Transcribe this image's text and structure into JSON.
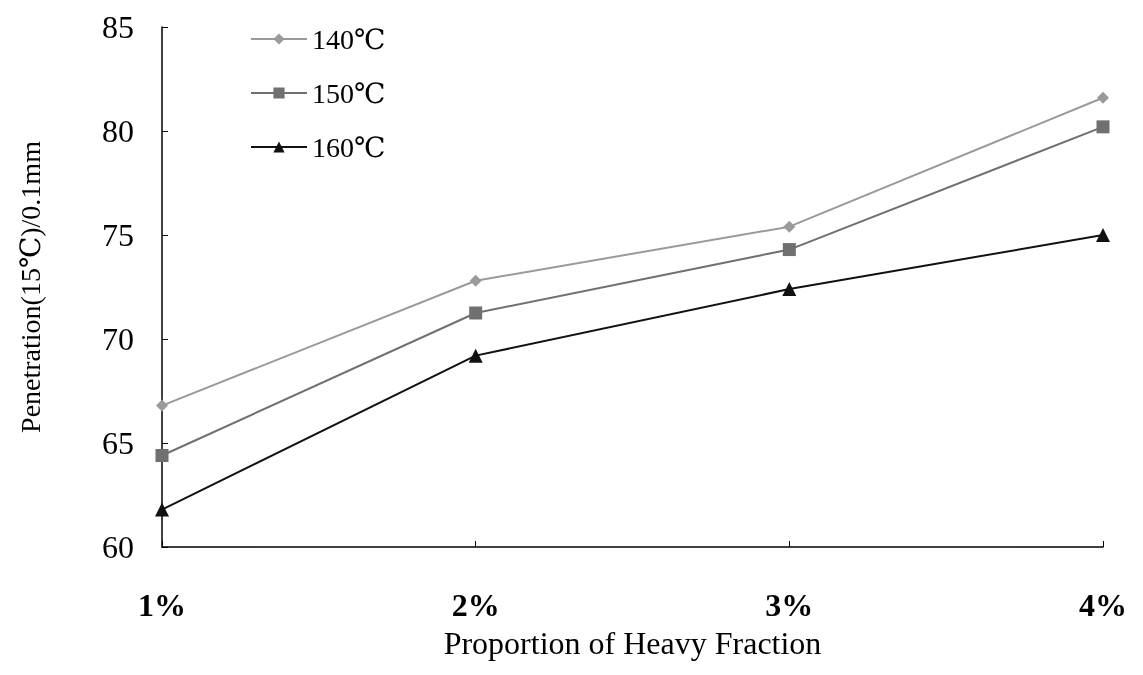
{
  "chart_data": {
    "type": "line",
    "xlabel": "Proportion of Heavy Fraction",
    "ylabel": "Penetration(15℃)/0.1mm",
    "categories": [
      "1%",
      "2%",
      "3%",
      "4%"
    ],
    "series": [
      {
        "name": "140℃",
        "color": "#9a9a9a",
        "marker": "diamond",
        "values": [
          66.8,
          72.8,
          75.4,
          81.6
        ]
      },
      {
        "name": "150℃",
        "color": "#707070",
        "marker": "square",
        "values": [
          64.4,
          71.25,
          74.3,
          80.2
        ]
      },
      {
        "name": "160℃",
        "color": "#111111",
        "marker": "triangle",
        "values": [
          61.8,
          69.2,
          72.4,
          75.0
        ]
      }
    ],
    "ylim": [
      60,
      85
    ],
    "yticks": [
      60,
      65,
      70,
      75,
      80,
      85
    ],
    "grid": false,
    "legend": "top left",
    "line_style": "solid"
  }
}
